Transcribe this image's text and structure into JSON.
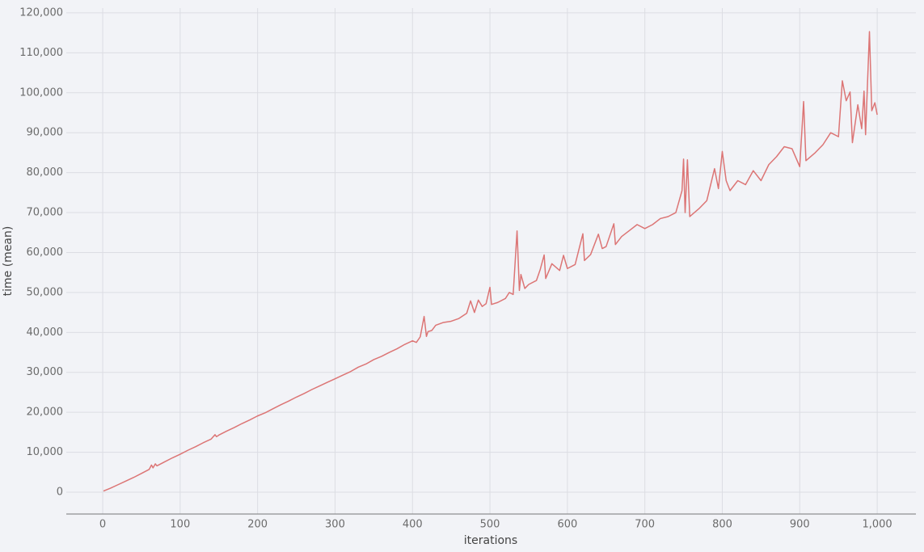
{
  "chart_data": {
    "type": "line",
    "x_label": "iterations",
    "y_label": "time (mean)",
    "xlim": [
      -47,
      1050
    ],
    "ylim": [
      -5460,
      121200
    ],
    "xticks": [
      0,
      100,
      200,
      300,
      400,
      500,
      600,
      700,
      800,
      900,
      {
        "value": 1000,
        "label": "1,000"
      }
    ],
    "yticks": [
      0,
      {
        "value": 10000,
        "label": "10,000"
      },
      {
        "value": 20000,
        "label": "20,000"
      },
      {
        "value": 30000,
        "label": "30,000"
      },
      {
        "value": 40000,
        "label": "40,000"
      },
      {
        "value": 50000,
        "label": "50,000"
      },
      {
        "value": 60000,
        "label": "60,000"
      },
      {
        "value": 70000,
        "label": "70,000"
      },
      {
        "value": 80000,
        "label": "80,000"
      },
      {
        "value": 90000,
        "label": "90,000"
      },
      {
        "value": 100000,
        "label": "100,000"
      },
      {
        "value": 110000,
        "label": "110,000"
      },
      {
        "value": 120000,
        "label": "120,000"
      }
    ],
    "grid": true,
    "x": [
      1,
      10,
      20,
      30,
      40,
      50,
      60,
      63,
      65,
      68,
      70,
      80,
      90,
      100,
      110,
      120,
      130,
      140,
      145,
      147,
      150,
      160,
      170,
      180,
      190,
      200,
      210,
      220,
      230,
      240,
      250,
      260,
      270,
      280,
      290,
      300,
      310,
      320,
      330,
      340,
      350,
      360,
      370,
      380,
      390,
      400,
      405,
      410,
      415,
      418,
      420,
      425,
      430,
      440,
      450,
      460,
      470,
      475,
      480,
      485,
      490,
      495,
      500,
      502,
      510,
      520,
      525,
      530,
      535,
      538,
      540,
      545,
      550,
      560,
      565,
      570,
      572,
      580,
      590,
      595,
      600,
      610,
      620,
      622,
      630,
      640,
      645,
      650,
      660,
      662,
      670,
      680,
      690,
      700,
      710,
      720,
      730,
      740,
      748,
      750,
      752,
      755,
      758,
      770,
      780,
      790,
      795,
      800,
      805,
      810,
      820,
      830,
      840,
      850,
      860,
      870,
      880,
      890,
      900,
      905,
      908,
      920,
      930,
      940,
      950,
      955,
      960,
      965,
      968,
      975,
      980,
      983,
      985,
      990,
      993,
      997,
      1000
    ],
    "series": [
      {
        "color": "#dc7575",
        "values": [
          300,
          1000,
          1900,
          2800,
          3700,
          4700,
          5700,
          6800,
          6100,
          7100,
          6600,
          7600,
          8600,
          9500,
          10500,
          11400,
          12400,
          13300,
          14400,
          13900,
          14300,
          15300,
          16200,
          17200,
          18100,
          19100,
          19900,
          20900,
          21900,
          22800,
          23800,
          24700,
          25700,
          26600,
          27500,
          28400,
          29300,
          30200,
          31300,
          32100,
          33200,
          34000,
          35000,
          35900,
          37000,
          37900,
          37500,
          38900,
          44000,
          39000,
          40200,
          40500,
          41800,
          42500,
          42800,
          43500,
          44800,
          47900,
          45000,
          48100,
          46500,
          47200,
          51300,
          47000,
          47500,
          48500,
          50000,
          49500,
          65400,
          50500,
          54500,
          51000,
          52000,
          53000,
          55800,
          59400,
          53500,
          57200,
          55500,
          59300,
          56000,
          57000,
          64700,
          58000,
          59500,
          64600,
          61000,
          61500,
          67200,
          62000,
          64000,
          65500,
          67000,
          66000,
          67000,
          68500,
          69000,
          70000,
          75500,
          83400,
          70000,
          83200,
          69000,
          71000,
          73000,
          81000,
          76000,
          85300,
          78000,
          75500,
          78000,
          77000,
          80500,
          78000,
          82000,
          84000,
          86500,
          86000,
          81500,
          97800,
          83000,
          85000,
          87000,
          90000,
          89000,
          103000,
          98000,
          100200,
          87500,
          97000,
          91000,
          100400,
          89500,
          115300,
          95500,
          97500,
          94500
        ]
      }
    ]
  }
}
